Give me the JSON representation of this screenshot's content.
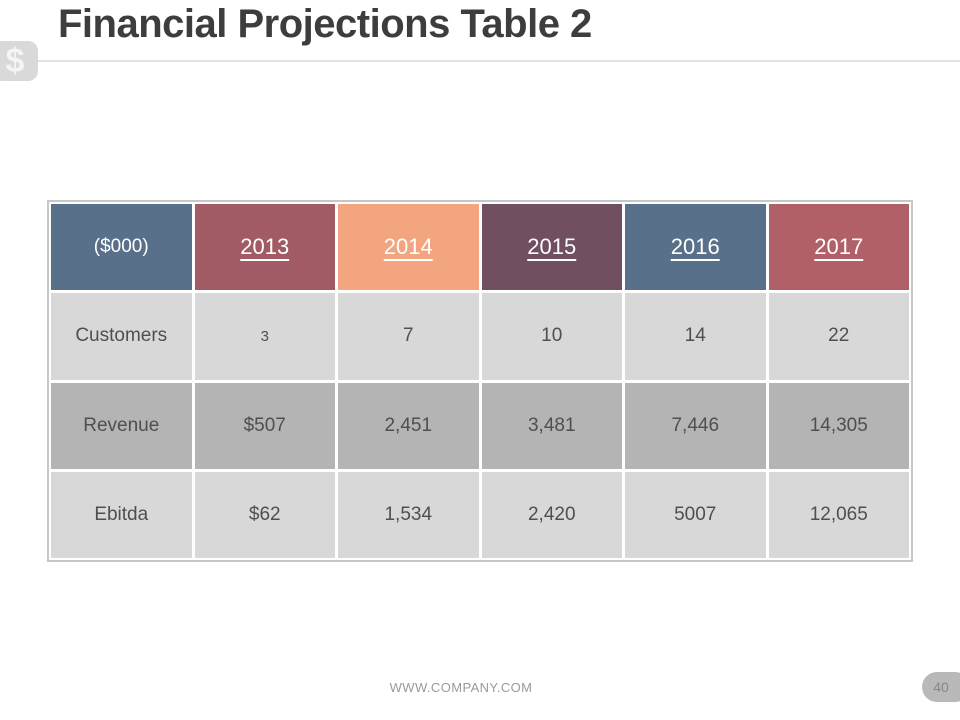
{
  "slide": {
    "title": "Financial Projections Table 2",
    "currency_symbol": "$",
    "footer_url": "WWW.COMPANY.COM",
    "page_number": "40"
  },
  "table": {
    "header": {
      "unit_label": "($000)",
      "years": [
        "2013",
        "2014",
        "2015",
        "2016",
        "2017"
      ]
    },
    "rows": [
      {
        "label": "Customers",
        "values": [
          "3",
          "7",
          "10",
          "14",
          "22"
        ]
      },
      {
        "label": "Revenue",
        "values": [
          "$507",
          "2,451",
          "3,481",
          "7,446",
          "14,305"
        ]
      },
      {
        "label": "Ebitda",
        "values": [
          "$62",
          "1,534",
          "2,420",
          "5007",
          "12,065"
        ]
      }
    ]
  },
  "colors": {
    "header_unit_bg": "#587089",
    "header_year_bg": [
      "#a25a64",
      "#f3a57f",
      "#6f4f60",
      "#587089",
      "#b26067"
    ],
    "row_light_bg": "#d8d8d8",
    "row_dark_bg": "#b4b4b4",
    "title_text": "#3d3d3d",
    "data_text": "#4f4f4f"
  },
  "chart_data": {
    "type": "table",
    "title": "Financial Projections Table 2",
    "unit": "($000)",
    "columns": [
      "($000)",
      "2013",
      "2014",
      "2015",
      "2016",
      "2017"
    ],
    "rows": [
      [
        "Customers",
        "3",
        "7",
        "10",
        "14",
        "22"
      ],
      [
        "Revenue",
        "$507",
        "2,451",
        "3,481",
        "7,446",
        "14,305"
      ],
      [
        "Ebitda",
        "$62",
        "1,534",
        "2,420",
        "5007",
        "12,065"
      ]
    ]
  }
}
